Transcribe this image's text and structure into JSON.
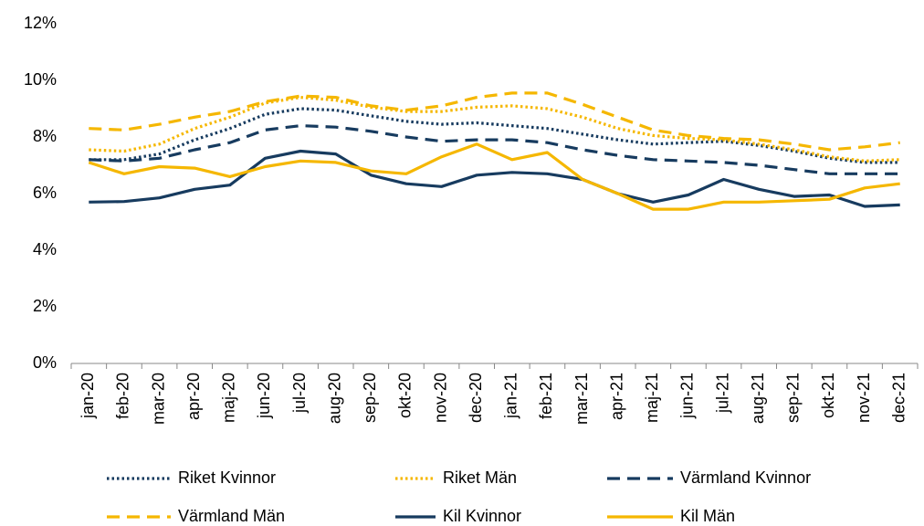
{
  "chart_data": {
    "type": "line",
    "categories": [
      "jan-20",
      "feb-20",
      "mar-20",
      "apr-20",
      "maj-20",
      "jun-20",
      "jul-20",
      "aug-20",
      "sep-20",
      "okt-20",
      "nov-20",
      "dec-20",
      "jan-21",
      "feb-21",
      "mar-21",
      "apr-21",
      "maj-21",
      "jun-21",
      "jul-21",
      "aug-21",
      "sep-21",
      "okt-21",
      "nov-21",
      "dec-21"
    ],
    "series": [
      {
        "name": "Riket Kvinnor",
        "color": "#173b5f",
        "style": "dotted",
        "values": [
          7.2,
          7.2,
          7.4,
          7.9,
          8.3,
          8.8,
          9.0,
          8.95,
          8.75,
          8.55,
          8.45,
          8.5,
          8.4,
          8.3,
          8.1,
          7.9,
          7.75,
          7.8,
          7.85,
          7.7,
          7.5,
          7.25,
          7.1,
          7.1
        ]
      },
      {
        "name": "Riket Män",
        "color": "#f5b700",
        "style": "dotted",
        "values": [
          7.55,
          7.5,
          7.75,
          8.3,
          8.7,
          9.2,
          9.4,
          9.3,
          9.05,
          8.9,
          8.9,
          9.05,
          9.1,
          9.0,
          8.7,
          8.3,
          8.05,
          7.95,
          7.9,
          7.75,
          7.55,
          7.3,
          7.15,
          7.2
        ]
      },
      {
        "name": "Värmland Kvinnor",
        "color": "#173b5f",
        "style": "dashed",
        "values": [
          7.2,
          7.15,
          7.25,
          7.55,
          7.8,
          8.25,
          8.4,
          8.35,
          8.2,
          8.0,
          7.85,
          7.9,
          7.9,
          7.8,
          7.55,
          7.35,
          7.2,
          7.15,
          7.1,
          7.0,
          6.85,
          6.7,
          6.7,
          6.7
        ]
      },
      {
        "name": "Värmland Män",
        "color": "#f5b700",
        "style": "dashed",
        "values": [
          8.3,
          8.25,
          8.45,
          8.7,
          8.9,
          9.25,
          9.45,
          9.4,
          9.1,
          8.95,
          9.1,
          9.4,
          9.55,
          9.55,
          9.15,
          8.7,
          8.25,
          8.05,
          7.95,
          7.9,
          7.75,
          7.55,
          7.65,
          7.8
        ]
      },
      {
        "name": "Kil Kvinnor",
        "color": "#173b5f",
        "style": "solid",
        "values": [
          5.7,
          5.72,
          5.85,
          6.15,
          6.3,
          7.25,
          7.5,
          7.4,
          6.65,
          6.35,
          6.25,
          6.65,
          6.75,
          6.7,
          6.5,
          6.0,
          5.7,
          5.95,
          6.5,
          6.15,
          5.9,
          5.95,
          5.55,
          5.6
        ]
      },
      {
        "name": "Kil Män",
        "color": "#f5b700",
        "style": "solid",
        "values": [
          7.1,
          6.7,
          6.95,
          6.9,
          6.6,
          6.95,
          7.15,
          7.1,
          6.8,
          6.7,
          7.3,
          7.75,
          7.2,
          7.45,
          6.5,
          6.0,
          5.45,
          5.45,
          5.7,
          5.7,
          5.75,
          5.8,
          6.2,
          6.35
        ]
      }
    ],
    "ylim": [
      0,
      12
    ],
    "yticks": [
      {
        "value": 0,
        "label": "0%"
      },
      {
        "value": 2,
        "label": "2%"
      },
      {
        "value": 4,
        "label": "4%"
      },
      {
        "value": 6,
        "label": "6%"
      },
      {
        "value": 8,
        "label": "8%"
      },
      {
        "value": 10,
        "label": "10%"
      },
      {
        "value": 12,
        "label": "12%"
      }
    ],
    "legend": "bottom"
  }
}
